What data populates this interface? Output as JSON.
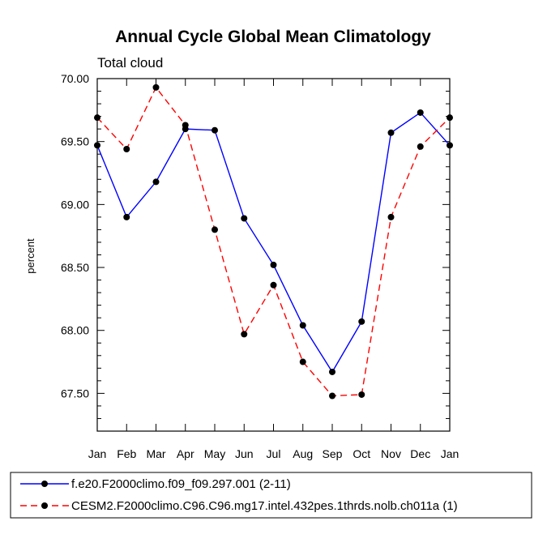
{
  "chart_data": {
    "type": "line",
    "title": "Annual Cycle Global Mean Climatology",
    "subtitle": "Total cloud",
    "xlabel": "",
    "ylabel": "percent",
    "categories": [
      "Jan",
      "Feb",
      "Mar",
      "Apr",
      "May",
      "Jun",
      "Jul",
      "Aug",
      "Sep",
      "Oct",
      "Nov",
      "Dec",
      "Jan"
    ],
    "ylim": [
      67.2,
      70.0
    ],
    "yticks": [
      "70.00",
      "69.50",
      "69.00",
      "68.50",
      "68.00",
      "67.50"
    ],
    "ytick_values": [
      70.0,
      69.5,
      69.0,
      68.5,
      68.0,
      67.5
    ],
    "series": [
      {
        "name": "f.e20.F2000climo.f09_f09.297.001 (2-11)",
        "color": "#0000ff",
        "dash": "solid",
        "values": [
          69.47,
          68.9,
          69.18,
          69.6,
          69.59,
          68.89,
          68.52,
          68.04,
          67.67,
          68.07,
          69.57,
          69.73,
          69.47
        ]
      },
      {
        "name": "CESM2.F2000climo.C96.C96.mg17.intel.432pes.1thrds.nolb.ch011a (1)",
        "color": "#ff0000",
        "dash": "dashed",
        "values": [
          69.69,
          69.44,
          69.93,
          69.63,
          68.8,
          67.97,
          68.36,
          67.75,
          67.48,
          67.49,
          68.9,
          69.46,
          69.69
        ]
      }
    ],
    "legend_position": "bottom"
  }
}
